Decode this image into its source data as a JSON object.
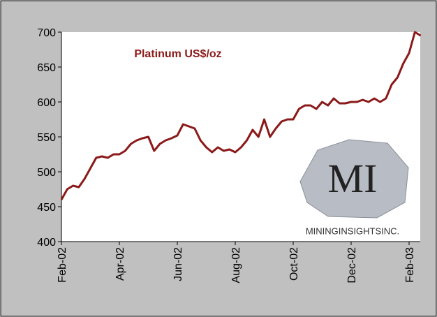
{
  "chart_data": {
    "type": "line",
    "title": "Platinum US$/oz",
    "logo": {
      "initials": "MI",
      "name": "MININGINSIGHTSINC."
    },
    "categories": [
      "Feb-02",
      null,
      null,
      null,
      null,
      null,
      null,
      null,
      null,
      null,
      "Apr-02",
      null,
      null,
      null,
      null,
      null,
      null,
      null,
      null,
      null,
      "Jun-02",
      null,
      null,
      null,
      null,
      null,
      null,
      null,
      null,
      null,
      "Aug-02",
      null,
      null,
      null,
      null,
      null,
      null,
      null,
      null,
      null,
      "Oct-02",
      null,
      null,
      null,
      null,
      null,
      null,
      null,
      null,
      null,
      "Dec-02",
      null,
      null,
      null,
      null,
      null,
      null,
      null,
      null,
      null,
      "Feb-03",
      null,
      null
    ],
    "series": [
      {
        "name": "Platinum US$/oz",
        "color": "#8b1a1a",
        "values": [
          460,
          475,
          480,
          478,
          490,
          505,
          520,
          522,
          520,
          525,
          525,
          530,
          540,
          545,
          548,
          550,
          530,
          540,
          545,
          548,
          552,
          568,
          565,
          562,
          545,
          535,
          528,
          535,
          530,
          532,
          528,
          535,
          545,
          560,
          550,
          575,
          550,
          562,
          572,
          575,
          575,
          590,
          595,
          595,
          590,
          600,
          595,
          605,
          598,
          598,
          600,
          600,
          603,
          600,
          605,
          600,
          605,
          625,
          635,
          655,
          670,
          700,
          695
        ]
      }
    ],
    "ylim": [
      400,
      700
    ],
    "yticks": [
      400,
      450,
      500,
      550,
      600,
      650,
      700
    ]
  }
}
